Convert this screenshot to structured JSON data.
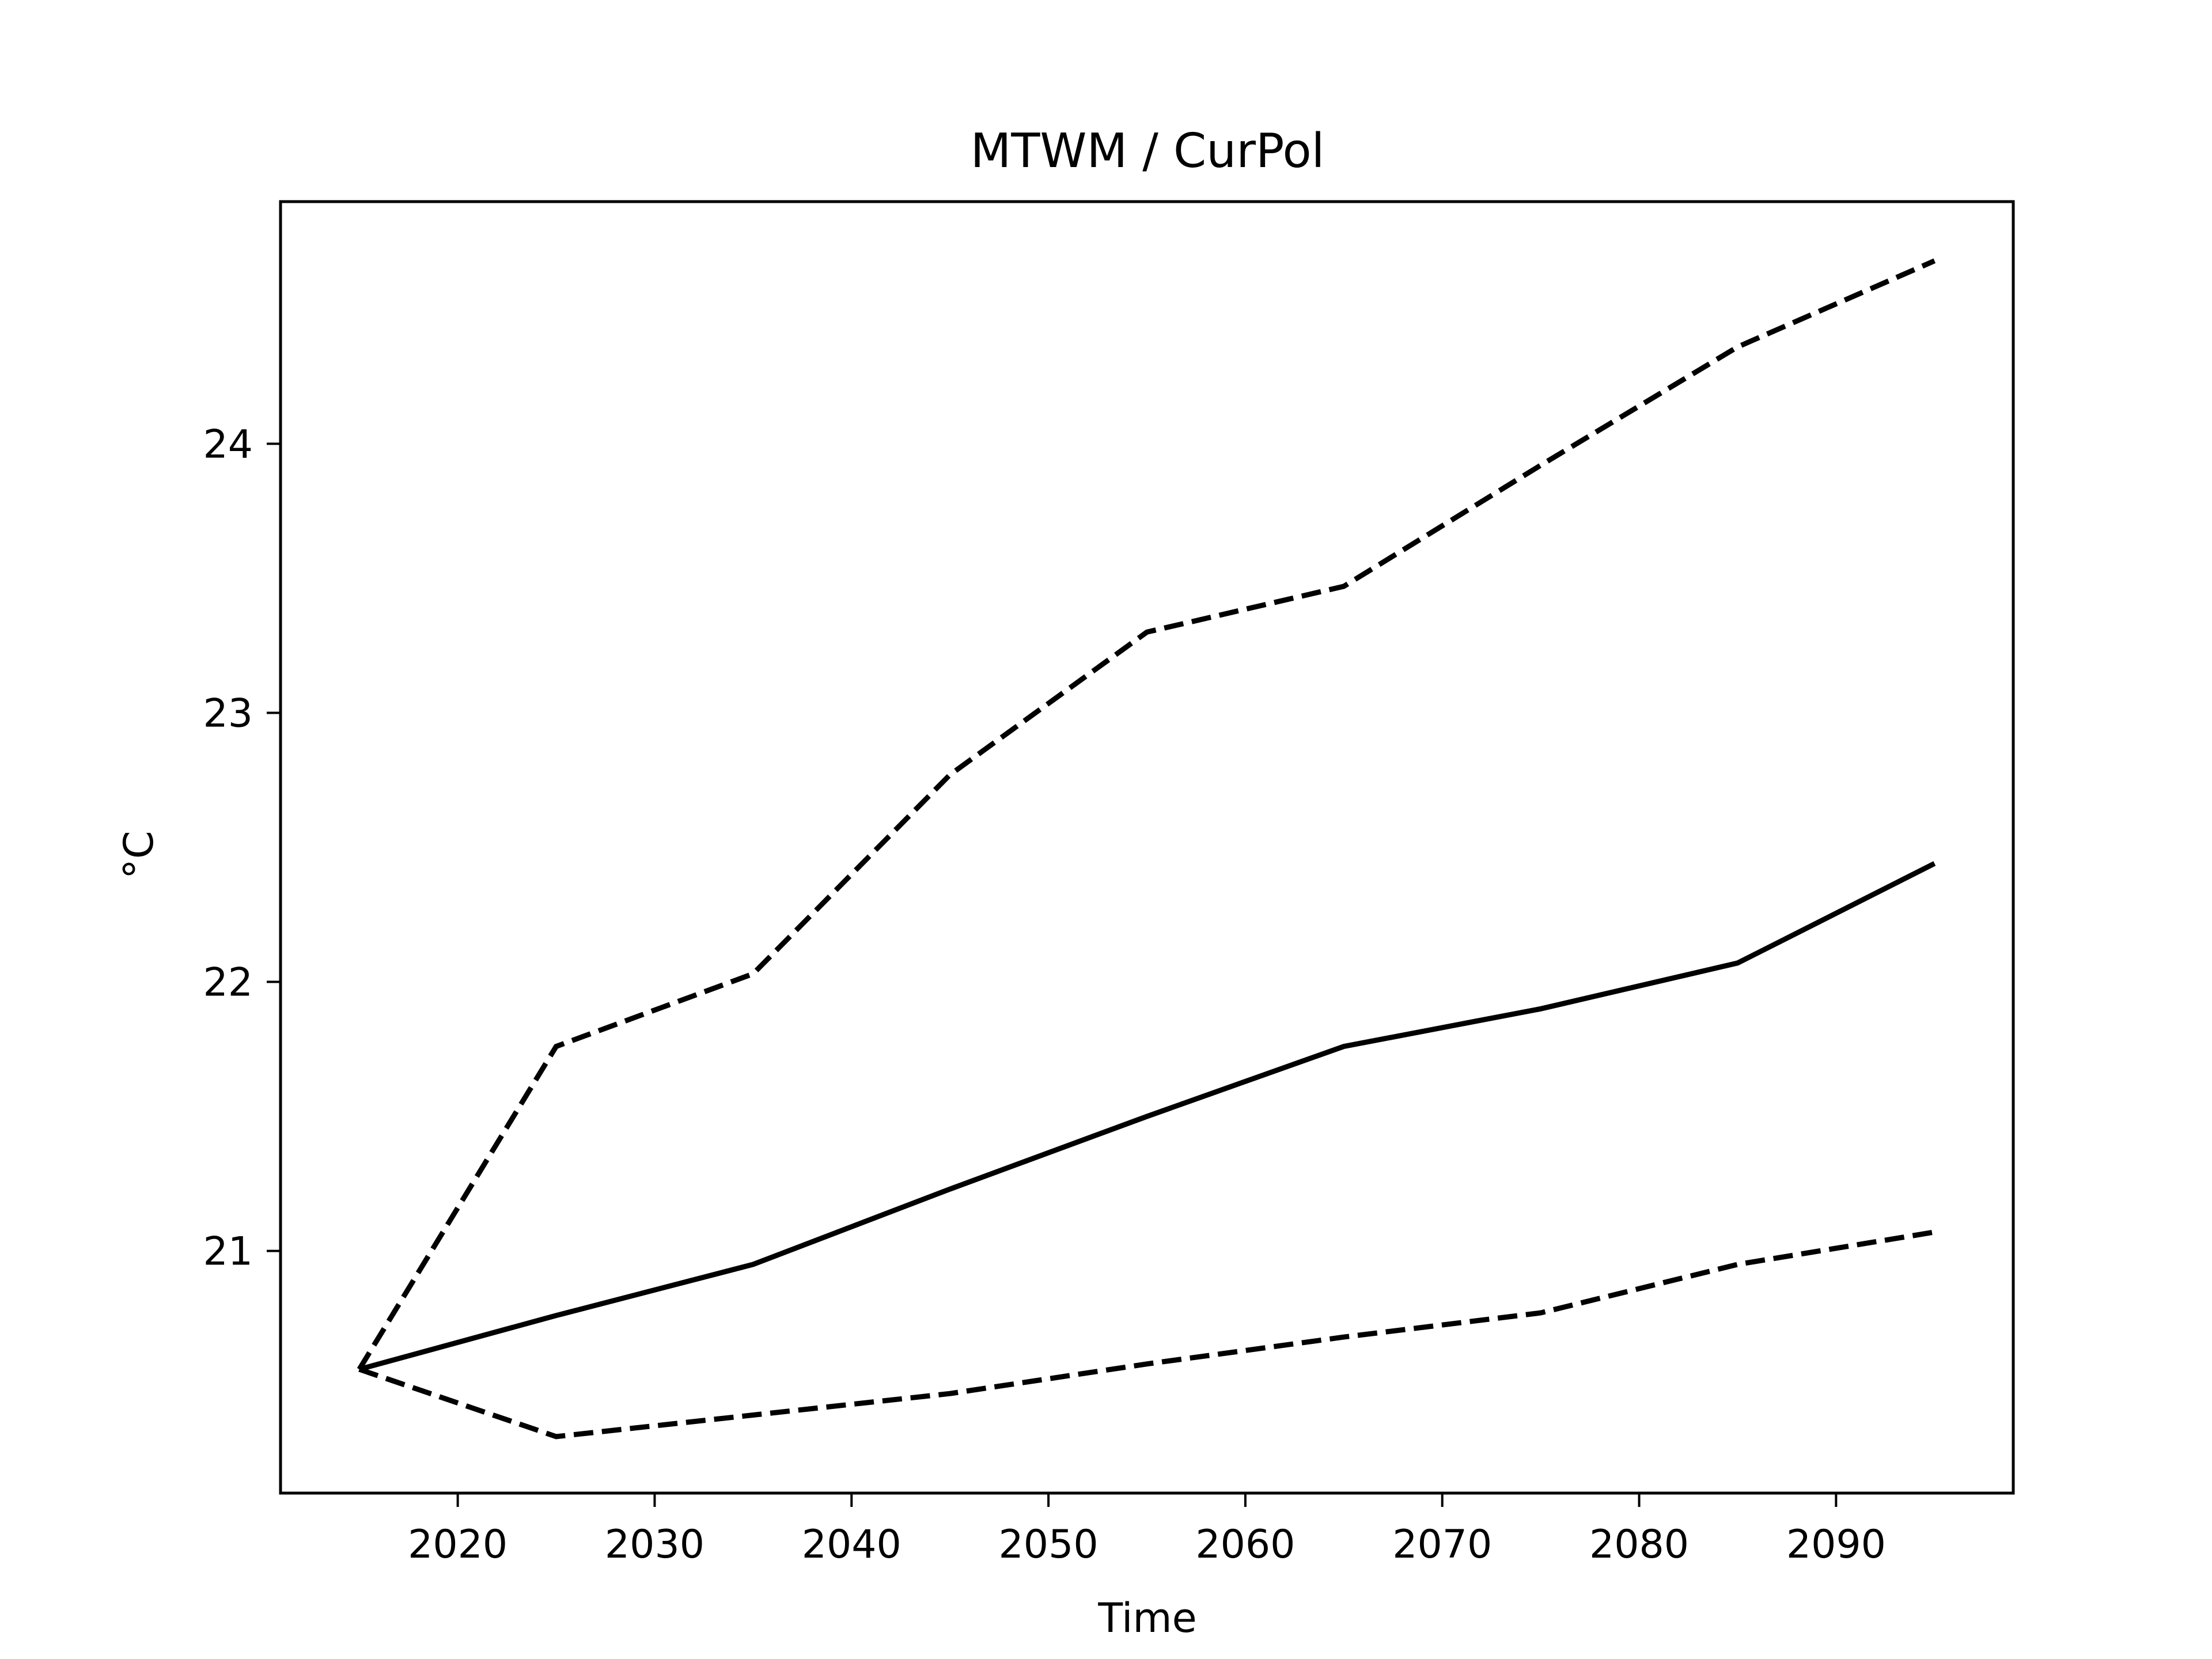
{
  "chart_data": {
    "type": "line",
    "title": "MTWM / CurPol",
    "xlabel": "Time",
    "ylabel": "°C",
    "xlim": [
      2011,
      2099
    ],
    "ylim": [
      20.1,
      24.9
    ],
    "xticks": [
      2020,
      2030,
      2040,
      2050,
      2060,
      2070,
      2080,
      2090
    ],
    "yticks": [
      21,
      22,
      23,
      24
    ],
    "grid": false,
    "legend": "none",
    "x": [
      2015,
      2025,
      2035,
      2045,
      2055,
      2065,
      2075,
      2085,
      2095
    ],
    "series": [
      {
        "style": "solid",
        "color": "#000000",
        "values": [
          20.56,
          20.76,
          20.95,
          21.23,
          21.5,
          21.76,
          21.9,
          22.07,
          22.44
        ]
      },
      {
        "style": "dashed",
        "color": "#000000",
        "values": [
          20.56,
          21.76,
          22.03,
          22.77,
          23.3,
          23.47,
          23.92,
          24.36,
          24.68
        ]
      },
      {
        "style": "dashed",
        "color": "#000000",
        "values": [
          20.56,
          20.31,
          20.39,
          20.47,
          20.58,
          20.68,
          20.77,
          20.95,
          21.07
        ]
      }
    ]
  }
}
